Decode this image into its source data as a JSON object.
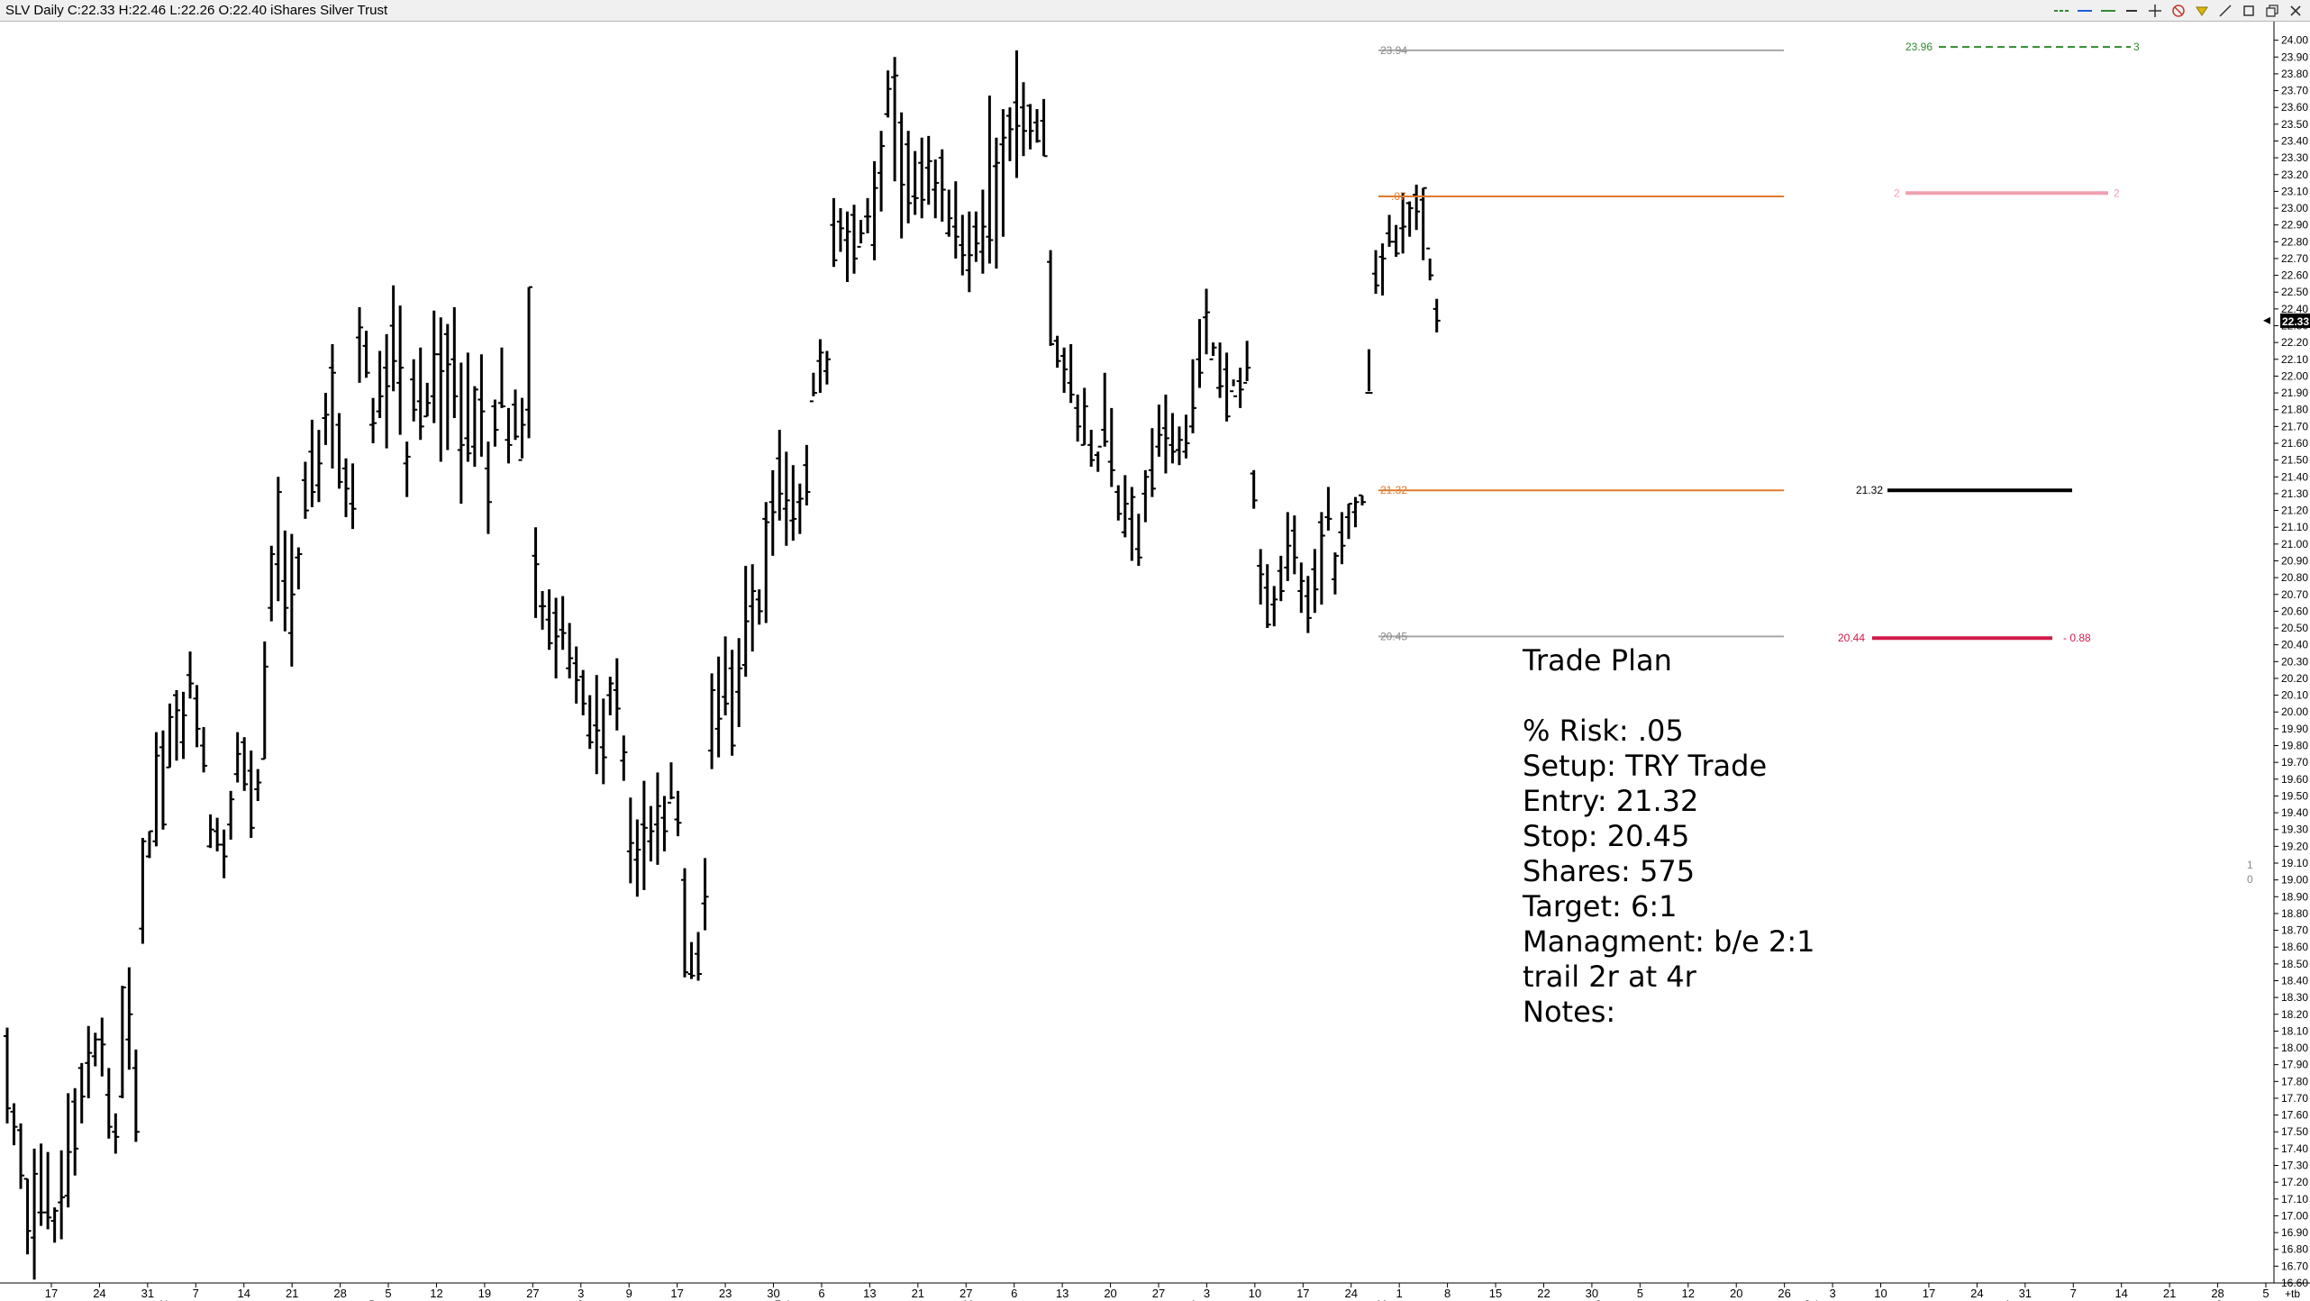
{
  "header": {
    "title": "SLV Daily C:22.33 H:22.46 L:22.26 O:22.40 iShares Silver Trust"
  },
  "toolbar": {
    "icons": [
      "green-dashes-icon",
      "blue-line-icon",
      "green-line-icon",
      "minus-icon",
      "crosshair-icon",
      "cross-out-icon",
      "triangle-down-icon",
      "diagonal-line-icon",
      "square-icon",
      "restore-icon",
      "close-icon"
    ]
  },
  "trade_plan": {
    "heading": "Trade Plan",
    "lines": [
      "% Risk: .05",
      "Setup: TRY Trade",
      "Entry: 21.32",
      "Stop: 20.45",
      "Shares: 575",
      "Target: 6:1",
      "Managment: b/e 2:1",
      "trail 2r at 4r",
      "Notes:"
    ]
  },
  "colors": {
    "bars": "#000000",
    "fib_line": "#e07a2e",
    "range_line": "#a6a6a6",
    "target_line": "#2e8b2e",
    "stop_line": "#d11a4a",
    "pink_line": "#f0a0b0",
    "entry_line": "#000000"
  },
  "chart_data": {
    "type": "ohlc",
    "symbol": "SLV",
    "timeframe": "Daily",
    "ylim": [
      16.6,
      24.1
    ],
    "ticks_y": [
      16.6,
      16.7,
      16.8,
      16.9,
      17.0,
      17.1,
      17.2,
      17.3,
      17.4,
      17.5,
      17.6,
      17.7,
      17.8,
      17.9,
      18.0,
      18.1,
      18.2,
      18.3,
      18.4,
      18.5,
      18.6,
      18.7,
      18.8,
      18.9,
      19.0,
      19.1,
      19.2,
      19.3,
      19.4,
      19.5,
      19.6,
      19.7,
      19.8,
      19.9,
      20.0,
      20.1,
      20.2,
      20.3,
      20.4,
      20.5,
      20.6,
      20.7,
      20.8,
      20.9,
      21.0,
      21.1,
      21.2,
      21.3,
      21.4,
      21.5,
      21.6,
      21.7,
      21.8,
      21.9,
      22.0,
      22.1,
      22.2,
      22.3,
      22.4,
      22.5,
      22.6,
      22.7,
      22.8,
      22.9,
      23.0,
      23.1,
      23.2,
      23.3,
      23.4,
      23.5,
      23.6,
      23.7,
      23.8,
      23.9,
      24.0
    ],
    "last_price": "22.33",
    "x_ticks": [
      "17",
      "24",
      "31",
      "7",
      "14",
      "21",
      "28",
      "5",
      "12",
      "19",
      "27",
      "3",
      "9",
      "17",
      "23",
      "30",
      "6",
      "13",
      "21",
      "27",
      "6",
      "13",
      "20",
      "27",
      "3",
      "10",
      "17",
      "24",
      "1",
      "8",
      "15",
      "22",
      "30",
      "5",
      "12",
      "20",
      "26",
      "3",
      "10",
      "17",
      "24",
      "31",
      "7",
      "14",
      "21",
      "28",
      "5"
    ],
    "month_labels": [
      "Nov",
      "Dec",
      "Jan",
      "Feb",
      "Mar",
      "Apr",
      "May",
      "Jun",
      "Jul",
      "Aug",
      "Sep"
    ],
    "axis_corner_label": "+tb",
    "side_marks": [
      "1",
      "0"
    ],
    "bars": [
      [
        18.07,
        18.12,
        17.55,
        17.64
      ],
      [
        17.62,
        17.67,
        17.42,
        17.53
      ],
      [
        17.51,
        17.55,
        17.16,
        17.24
      ],
      [
        17.22,
        17.22,
        16.77,
        16.91
      ],
      [
        16.87,
        17.4,
        16.62,
        17.25
      ],
      [
        17.02,
        17.43,
        16.94,
        17.02
      ],
      [
        17.02,
        17.38,
        16.92,
        16.99
      ],
      [
        16.97,
        17.05,
        16.84,
        17.03
      ],
      [
        17.08,
        17.39,
        16.86,
        17.11
      ],
      [
        17.12,
        17.73,
        17.05,
        17.38
      ],
      [
        17.68,
        17.76,
        17.24,
        17.4
      ],
      [
        17.88,
        17.91,
        17.55,
        17.71
      ],
      [
        17.91,
        18.13,
        17.7,
        17.97
      ],
      [
        17.95,
        18.09,
        17.89,
        18.05
      ],
      [
        18.05,
        18.18,
        17.83,
        18.02
      ],
      [
        17.72,
        17.88,
        17.46,
        17.53
      ],
      [
        17.5,
        17.61,
        17.37,
        17.47
      ],
      [
        17.71,
        18.37,
        17.7,
        18.36
      ],
      [
        18.05,
        18.48,
        17.87,
        18.2
      ],
      [
        17.88,
        17.99,
        17.44,
        17.5
      ],
      [
        18.71,
        19.25,
        18.62,
        19.23
      ],
      [
        19.14,
        19.29,
        19.13,
        19.29
      ],
      [
        19.23,
        19.88,
        19.2,
        19.74
      ],
      [
        19.79,
        19.89,
        19.3,
        19.33
      ],
      [
        19.67,
        20.05,
        19.67,
        19.97
      ],
      [
        20.1,
        20.13,
        19.71,
        20.01
      ],
      [
        19.82,
        20.12,
        19.72,
        19.98
      ],
      [
        20.22,
        20.36,
        20.08,
        20.17
      ],
      [
        20.08,
        20.16,
        19.79,
        19.9
      ],
      [
        19.8,
        19.91,
        19.64,
        19.68
      ],
      [
        19.2,
        19.39,
        19.19,
        19.3
      ],
      [
        19.29,
        19.37,
        19.17,
        19.21
      ],
      [
        19.21,
        19.3,
        19.01,
        19.14
      ],
      [
        19.33,
        19.53,
        19.24,
        19.48
      ],
      [
        19.63,
        19.88,
        19.58,
        19.75
      ],
      [
        19.82,
        19.85,
        19.53,
        19.57
      ],
      [
        19.65,
        19.77,
        19.25,
        19.31
      ],
      [
        19.54,
        19.66,
        19.47,
        19.58
      ],
      [
        19.72,
        20.42,
        19.72,
        20.27
      ],
      [
        20.62,
        20.99,
        20.54,
        20.94
      ],
      [
        20.88,
        21.4,
        20.66,
        21.31
      ],
      [
        20.78,
        21.08,
        20.48,
        20.62
      ],
      [
        20.47,
        21.06,
        20.27,
        20.7
      ],
      [
        20.92,
        20.98,
        20.73,
        20.94
      ],
      [
        21.38,
        21.49,
        21.15,
        21.2
      ],
      [
        21.55,
        21.74,
        21.22,
        21.31
      ],
      [
        21.35,
        21.68,
        21.25,
        21.48
      ],
      [
        21.75,
        21.9,
        21.59,
        21.77
      ],
      [
        22.05,
        22.19,
        21.45,
        22.02
      ],
      [
        21.71,
        21.78,
        21.33,
        21.37
      ],
      [
        21.45,
        21.51,
        21.16,
        21.33
      ],
      [
        21.24,
        21.48,
        21.09,
        21.21
      ],
      [
        22.23,
        22.41,
        21.96,
        22.29
      ],
      [
        22.18,
        22.27,
        21.99,
        22.02
      ],
      [
        21.71,
        21.87,
        21.6,
        21.72
      ],
      [
        21.79,
        22.15,
        21.75,
        21.88
      ],
      [
        22.05,
        22.25,
        21.57,
        21.94
      ],
      [
        22.3,
        22.54,
        21.91,
        22.09
      ],
      [
        21.96,
        22.42,
        21.65,
        22.05
      ],
      [
        21.48,
        21.61,
        21.28,
        21.52
      ],
      [
        21.98,
        22.1,
        21.73,
        21.8
      ],
      [
        21.85,
        22.17,
        21.62,
        21.7
      ],
      [
        21.76,
        21.96,
        21.76,
        21.84
      ],
      [
        21.88,
        22.39,
        21.72,
        22.13
      ],
      [
        22.13,
        22.35,
        21.49,
        22.03
      ],
      [
        22.25,
        22.31,
        21.56,
        22.07
      ],
      [
        22.1,
        22.41,
        21.75,
        21.88
      ],
      [
        21.56,
        22.08,
        21.24,
        21.59
      ],
      [
        21.63,
        22.14,
        21.49,
        21.54
      ],
      [
        21.58,
        21.94,
        21.46,
        21.92
      ],
      [
        21.86,
        22.13,
        21.52,
        21.79
      ],
      [
        21.45,
        21.61,
        21.06,
        21.25
      ],
      [
        21.82,
        21.86,
        21.58,
        21.68
      ],
      [
        21.84,
        22.17,
        21.81,
        21.82
      ],
      [
        21.62,
        21.81,
        21.48,
        21.59
      ],
      [
        21.83,
        21.92,
        21.62,
        21.64
      ],
      [
        21.5,
        21.87,
        21.51,
        21.71
      ],
      [
        21.8,
        22.53,
        21.63,
        22.53
      ],
      [
        20.93,
        21.1,
        20.56,
        20.88
      ],
      [
        20.63,
        20.72,
        20.49,
        20.63
      ],
      [
        20.55,
        20.73,
        20.37,
        20.41
      ],
      [
        20.59,
        20.68,
        20.2,
        20.45
      ],
      [
        20.49,
        20.69,
        20.37,
        20.47
      ],
      [
        20.26,
        20.53,
        20.2,
        20.32
      ],
      [
        20.29,
        20.39,
        20.05,
        20.19
      ],
      [
        20.21,
        20.25,
        19.98,
        20.05
      ],
      [
        19.86,
        20.1,
        19.78,
        19.82
      ],
      [
        19.92,
        20.22,
        19.63,
        19.89
      ],
      [
        19.79,
        20.08,
        19.57,
        19.73
      ],
      [
        20.1,
        20.21,
        19.98,
        20.17
      ],
      [
        20.13,
        20.32,
        19.89,
        20.02
      ],
      [
        19.71,
        19.86,
        19.59,
        19.76
      ],
      [
        19.17,
        19.49,
        18.98,
        19.22
      ],
      [
        19.12,
        19.36,
        18.9,
        19.18
      ],
      [
        19.33,
        19.59,
        18.94,
        19.31
      ],
      [
        19.23,
        19.44,
        19.11,
        19.29
      ],
      [
        19.33,
        19.64,
        19.09,
        19.44
      ],
      [
        19.37,
        19.5,
        19.17,
        19.29
      ],
      [
        19.46,
        19.7,
        19.48,
        19.49
      ],
      [
        19.36,
        19.53,
        19.26,
        19.34
      ],
      [
        19.0,
        19.07,
        18.42,
        18.45
      ],
      [
        18.44,
        18.63,
        18.41,
        18.43
      ],
      [
        18.56,
        18.69,
        18.4,
        18.44
      ],
      [
        18.86,
        19.13,
        18.7,
        18.9
      ],
      [
        19.77,
        20.23,
        19.66,
        20.13
      ],
      [
        19.9,
        20.33,
        19.73,
        19.96
      ],
      [
        20.09,
        20.45,
        19.98,
        20.05
      ],
      [
        20.26,
        20.37,
        19.74,
        19.8
      ],
      [
        20.12,
        20.44,
        19.91,
        20.26
      ],
      [
        20.28,
        20.87,
        20.21,
        20.54
      ],
      [
        20.63,
        20.88,
        20.36,
        20.72
      ],
      [
        20.67,
        20.73,
        20.52,
        20.6
      ],
      [
        21.15,
        21.25,
        20.53,
        21.13
      ],
      [
        21.25,
        21.44,
        20.93,
        21.19
      ],
      [
        21.51,
        21.68,
        21.14,
        21.3
      ],
      [
        21.21,
        21.55,
        20.99,
        21.26
      ],
      [
        21.14,
        21.47,
        21.02,
        21.15
      ],
      [
        21.25,
        21.36,
        21.06,
        21.27
      ],
      [
        21.47,
        21.59,
        21.23,
        21.31
      ],
      [
        21.85,
        22.02,
        21.88,
        21.9
      ],
      [
        22.09,
        22.22,
        21.9,
        22.14
      ],
      [
        22.03,
        22.15,
        21.95,
        22.1
      ],
      [
        22.9,
        23.06,
        22.65,
        22.69
      ],
      [
        22.92,
        23.0,
        22.74,
        22.88
      ],
      [
        22.81,
        22.98,
        22.56,
        22.86
      ],
      [
        22.96,
        23.02,
        22.61,
        22.7
      ],
      [
        22.77,
        22.93,
        22.79,
        22.85
      ],
      [
        22.95,
        23.06,
        22.85,
        22.95
      ],
      [
        22.78,
        23.28,
        22.69,
        23.12
      ],
      [
        23.21,
        23.46,
        22.98,
        23.37
      ],
      [
        23.56,
        23.82,
        23.54,
        23.71
      ],
      [
        23.78,
        23.9,
        23.16,
        23.79
      ],
      [
        23.51,
        23.57,
        22.82,
        23.14
      ],
      [
        23.38,
        23.46,
        22.91,
        23.03
      ],
      [
        23.07,
        23.34,
        22.96,
        23.06
      ],
      [
        23.27,
        23.42,
        22.94,
        23.05
      ],
      [
        23.24,
        23.43,
        23.02,
        23.28
      ],
      [
        23.11,
        23.29,
        22.94,
        23.15
      ],
      [
        23.3,
        23.35,
        22.92,
        23.11
      ],
      [
        22.85,
        23.11,
        22.83,
        22.94
      ],
      [
        22.89,
        23.16,
        22.7,
        22.83
      ],
      [
        22.78,
        22.96,
        22.6,
        22.72
      ],
      [
        22.63,
        22.98,
        22.5,
        22.72
      ],
      [
        22.89,
        22.98,
        22.68,
        22.79
      ],
      [
        22.74,
        23.11,
        22.61,
        22.89
      ],
      [
        22.83,
        23.67,
        22.67,
        22.81
      ],
      [
        23.25,
        23.42,
        22.64,
        23.27
      ],
      [
        23.38,
        23.59,
        22.83,
        23.42
      ],
      [
        23.55,
        23.6,
        23.28,
        23.47
      ],
      [
        23.63,
        23.94,
        23.18,
        23.49
      ],
      [
        23.6,
        23.75,
        23.31,
        23.46
      ],
      [
        23.61,
        23.62,
        23.35,
        23.46
      ],
      [
        23.51,
        23.59,
        23.39,
        23.4
      ],
      [
        23.52,
        23.65,
        23.31,
        23.31
      ],
      [
        22.68,
        22.75,
        22.18,
        22.19
      ],
      [
        22.21,
        22.24,
        22.05,
        22.09
      ],
      [
        22.12,
        22.17,
        21.9,
        22.04
      ],
      [
        21.96,
        22.19,
        21.84,
        21.89
      ],
      [
        21.81,
        21.89,
        21.61,
        21.7
      ],
      [
        21.59,
        21.93,
        21.59,
        21.82
      ],
      [
        21.59,
        21.68,
        21.46,
        21.5
      ],
      [
        21.53,
        21.55,
        21.43,
        21.58
      ],
      [
        21.68,
        22.02,
        21.58,
        21.61
      ],
      [
        21.49,
        21.81,
        21.34,
        21.44
      ],
      [
        21.31,
        21.35,
        21.14,
        21.18
      ],
      [
        21.07,
        21.41,
        21.04,
        21.24
      ],
      [
        21.15,
        21.34,
        20.9,
        21.28
      ],
      [
        20.97,
        21.18,
        20.87,
        20.92
      ],
      [
        21.3,
        21.44,
        21.13,
        21.4
      ],
      [
        21.44,
        21.69,
        21.28,
        21.33
      ],
      [
        21.58,
        21.83,
        21.52,
        21.65
      ],
      [
        21.69,
        21.89,
        21.42,
        21.63
      ],
      [
        21.59,
        21.78,
        21.48,
        21.55
      ],
      [
        21.56,
        21.7,
        21.47,
        21.62
      ],
      [
        21.55,
        21.77,
        21.51,
        21.6
      ],
      [
        21.7,
        22.1,
        21.66,
        21.81
      ],
      [
        22.1,
        22.34,
        21.93,
        22.02
      ],
      [
        22.35,
        22.52,
        22.13,
        22.38
      ],
      [
        22.1,
        22.2,
        22.12,
        22.17
      ],
      [
        21.93,
        22.2,
        21.87,
        21.94
      ],
      [
        22.04,
        22.14,
        21.73,
        21.76
      ],
      [
        21.91,
        21.94,
        21.98,
        21.88
      ],
      [
        21.97,
        22.05,
        21.81,
        21.92
      ],
      [
        21.96,
        22.21,
        21.97,
        22.05
      ],
      [
        21.42,
        21.44,
        21.21,
        21.26
      ],
      [
        20.87,
        20.97,
        20.64,
        20.82
      ],
      [
        20.74,
        20.88,
        20.5,
        20.52
      ],
      [
        20.64,
        20.75,
        20.51,
        20.67
      ],
      [
        20.84,
        20.93,
        20.66,
        20.72
      ],
      [
        20.86,
        21.19,
        20.78,
        20.99
      ],
      [
        21.08,
        21.17,
        20.82,
        20.92
      ],
      [
        20.72,
        20.89,
        20.59,
        20.78
      ],
      [
        20.69,
        20.81,
        20.47,
        20.56
      ],
      [
        20.85,
        20.97,
        20.59,
        20.73
      ],
      [
        21.13,
        21.19,
        20.64,
        21.05
      ],
      [
        21.16,
        21.34,
        21.08,
        21.15
      ],
      [
        20.79,
        20.95,
        20.7,
        20.93
      ],
      [
        21.07,
        21.19,
        20.88,
        20.99
      ],
      [
        21.16,
        21.24,
        21.03,
        21.24
      ],
      [
        21.19,
        21.28,
        21.1,
        21.25
      ],
      [
        21.29,
        21.29,
        21.23,
        21.25
      ],
      [
        21.9,
        22.16,
        21.91,
        21.9
      ],
      [
        22.61,
        22.75,
        22.49,
        22.54
      ],
      [
        22.71,
        22.79,
        22.48,
        22.7
      ],
      [
        22.85,
        22.96,
        22.77,
        22.8
      ],
      [
        22.8,
        22.9,
        22.71,
        22.73
      ],
      [
        22.88,
        23.09,
        22.73,
        22.89
      ],
      [
        23.03,
        23.04,
        22.83,
        23.0
      ],
      [
        23.08,
        23.14,
        22.87,
        22.98
      ],
      [
        23.05,
        23.12,
        22.69,
        23.12
      ],
      [
        22.76,
        22.7,
        22.57,
        22.6
      ],
      [
        22.4,
        22.46,
        22.26,
        22.33
      ]
    ],
    "drawings": [
      {
        "type": "hline",
        "label": "23.94",
        "value": 23.94,
        "color": "#a6a6a6"
      },
      {
        "type": "hline",
        "label": ".07",
        "value": 23.07,
        "color": "#e07a2e"
      },
      {
        "type": "hline",
        "label": "21.32",
        "value": 21.32,
        "color": "#e07a2e"
      },
      {
        "type": "hline",
        "label": "20.45",
        "value": 20.45,
        "color": "#a6a6a6"
      },
      {
        "type": "target",
        "label": "23.96",
        "end_label": "3",
        "value": 23.96,
        "color": "#2e8b2e"
      },
      {
        "type": "target",
        "label": "2",
        "end_label": "2",
        "value": 23.09,
        "color": "#f0a0b0"
      },
      {
        "type": "entry",
        "label": "21.32",
        "value": 21.32,
        "color": "#000000"
      },
      {
        "type": "stop",
        "label": "20.44",
        "end_label": "0.88",
        "value": 20.44,
        "color": "#d11a4a"
      }
    ]
  }
}
